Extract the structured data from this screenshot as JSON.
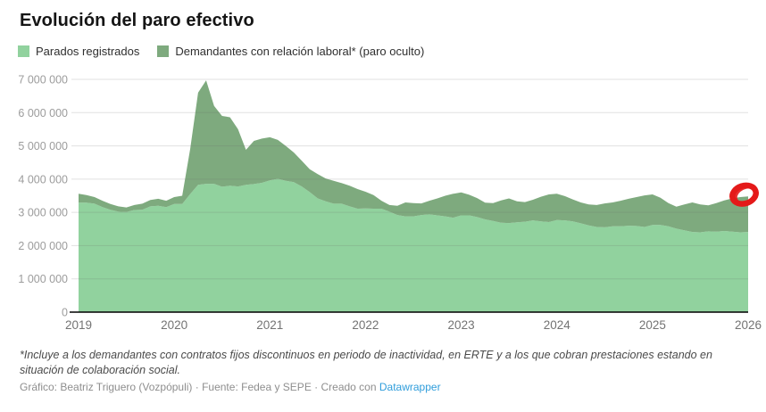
{
  "title": "Evolución del paro efectivo",
  "legend": [
    {
      "label": "Parados registrados",
      "color": "#91d29e"
    },
    {
      "label": "Demandantes con relación laboral* (paro oculto)",
      "color": "#7eaa7e"
    }
  ],
  "chart_data": {
    "type": "area",
    "stacked": true,
    "title": "Evolución del paro efectivo",
    "xlabel": "",
    "ylabel": "",
    "ylim": [
      0,
      7000000
    ],
    "grid": true,
    "legend_position": "top",
    "x_unit": "months, Jan 2019 – Jan 2026",
    "x_year_ticks": [
      "2019",
      "2020",
      "2021",
      "2022",
      "2023",
      "2024",
      "2025",
      "2026"
    ],
    "y_ticks": [
      {
        "value": 0,
        "label": "0"
      },
      {
        "value": 1,
        "label": "1 000 000"
      },
      {
        "value": 2,
        "label": "2 000 000"
      },
      {
        "value": 3,
        "label": "3 000 000"
      },
      {
        "value": 4,
        "label": "4 000 000"
      },
      {
        "value": 5,
        "label": "5 000 000"
      },
      {
        "value": 6,
        "label": "6 000 000"
      },
      {
        "value": 7,
        "label": "7 000 000"
      }
    ],
    "series": [
      {
        "name": "Parados registrados",
        "color": "#91d29e",
        "values_millions": [
          3.29,
          3.29,
          3.26,
          3.16,
          3.08,
          3.02,
          3.01,
          3.07,
          3.08,
          3.18,
          3.2,
          3.16,
          3.25,
          3.25,
          3.55,
          3.83,
          3.86,
          3.86,
          3.77,
          3.8,
          3.78,
          3.83,
          3.85,
          3.89,
          3.96,
          4.01,
          3.95,
          3.91,
          3.78,
          3.61,
          3.42,
          3.33,
          3.26,
          3.26,
          3.18,
          3.11,
          3.12,
          3.11,
          3.11,
          3.02,
          2.92,
          2.88,
          2.88,
          2.92,
          2.94,
          2.91,
          2.88,
          2.84,
          2.91,
          2.91,
          2.86,
          2.79,
          2.74,
          2.69,
          2.68,
          2.7,
          2.72,
          2.76,
          2.73,
          2.71,
          2.77,
          2.76,
          2.73,
          2.67,
          2.61,
          2.56,
          2.55,
          2.58,
          2.58,
          2.6,
          2.59,
          2.56,
          2.62,
          2.62,
          2.58,
          2.51,
          2.46,
          2.41,
          2.4,
          2.43,
          2.42,
          2.44,
          2.42,
          2.4,
          2.41
        ]
      },
      {
        "name": "Demandantes con relación laboral* (paro oculto)",
        "color": "#7eaa7e",
        "note": "drawn as band between registered and total effective unemployment",
        "total_values_millions": [
          3.56,
          3.52,
          3.46,
          3.35,
          3.25,
          3.18,
          3.15,
          3.22,
          3.26,
          3.37,
          3.41,
          3.35,
          3.46,
          3.5,
          4.9,
          6.6,
          6.97,
          6.2,
          5.9,
          5.86,
          5.5,
          4.88,
          5.15,
          5.22,
          5.26,
          5.18,
          5.0,
          4.8,
          4.55,
          4.3,
          4.15,
          4.02,
          3.95,
          3.88,
          3.8,
          3.7,
          3.62,
          3.52,
          3.35,
          3.22,
          3.2,
          3.3,
          3.28,
          3.27,
          3.35,
          3.42,
          3.5,
          3.56,
          3.6,
          3.53,
          3.43,
          3.29,
          3.28,
          3.36,
          3.42,
          3.33,
          3.31,
          3.38,
          3.47,
          3.54,
          3.56,
          3.49,
          3.39,
          3.3,
          3.24,
          3.22,
          3.27,
          3.3,
          3.35,
          3.41,
          3.46,
          3.51,
          3.54,
          3.44,
          3.28,
          3.17,
          3.24,
          3.3,
          3.24,
          3.21,
          3.28,
          3.36,
          3.42,
          3.46,
          3.48
        ]
      }
    ],
    "annotation": {
      "type": "hand-drawn-red-circle",
      "color": "#e41a1a",
      "at_x_year": 2026,
      "at_value_millions": 3.48
    }
  },
  "footnote": "*Incluye a los demandantes con contratos fijos discontinuos en periodo de inactividad, en ERTE y a los que cobran prestaciones estando en situación de colaboración social.",
  "credit": {
    "byline": "Gráfico: Beatriz Triguero (Vozpópuli) · Fuente: Fedea y SEPE · Creado con ",
    "link_label": "Datawrapper"
  }
}
